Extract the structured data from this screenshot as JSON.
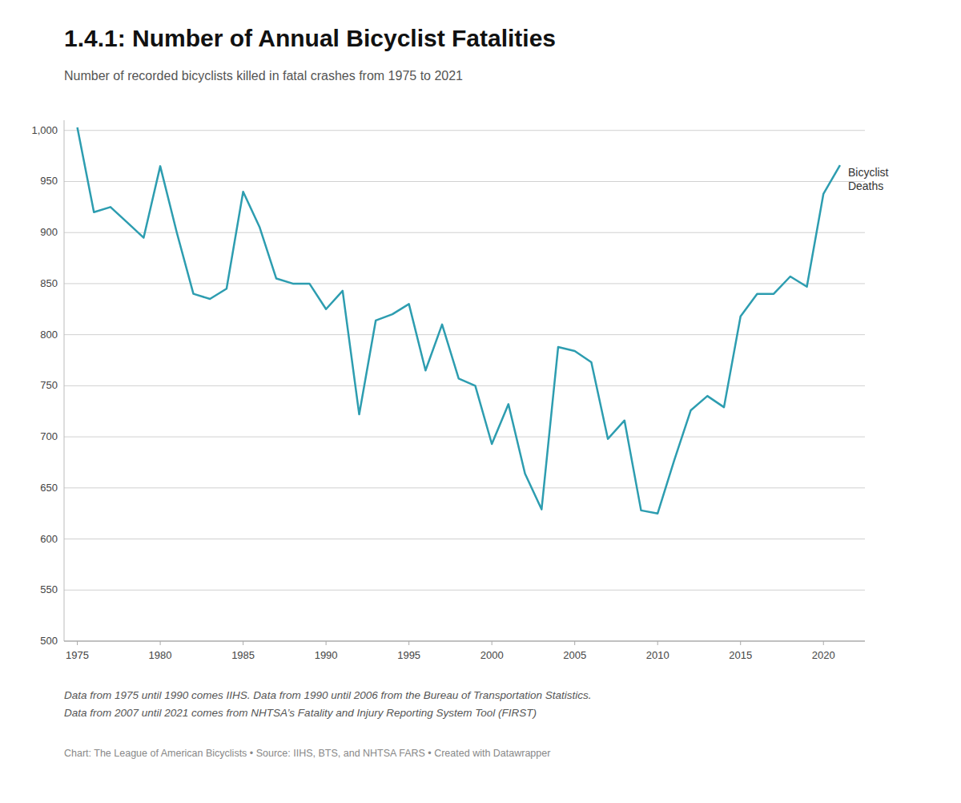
{
  "chart_data": {
    "type": "line",
    "title": "1.4.1: Number of Annual Bicyclist Fatalities",
    "subtitle": "Number of recorded bicyclists killed in fatal crashes from 1975 to 2021",
    "annotations": [
      "Data from 1975 until 1990 comes IIHS. Data from 1990 until 2006 from the Bureau of Transportation Statistics.",
      "Data from 2007 until 2021 comes from NHTSA’s Fatality and Injury Reporting System Tool (FIRST)",
      "Chart: The League of American Bicyclists • Source: IIHS, BTS, and NHTSA FARS • Created with Datawrapper"
    ],
    "x": [
      1975,
      1976,
      1977,
      1978,
      1979,
      1980,
      1981,
      1982,
      1983,
      1984,
      1985,
      1986,
      1987,
      1988,
      1989,
      1990,
      1991,
      1992,
      1993,
      1994,
      1995,
      1996,
      1997,
      1998,
      1999,
      2000,
      2001,
      2002,
      2003,
      2004,
      2005,
      2006,
      2007,
      2008,
      2009,
      2010,
      2011,
      2012,
      2013,
      2014,
      2015,
      2016,
      2017,
      2018,
      2019,
      2020,
      2021
    ],
    "series": [
      {
        "name": "Bicyclist\nDeaths",
        "color": "#2d9db0",
        "values": [
          1003,
          920,
          925,
          910,
          895,
          965,
          900,
          840,
          835,
          845,
          940,
          905,
          855,
          850,
          850,
          825,
          843,
          722,
          814,
          820,
          830,
          765,
          810,
          757,
          750,
          693,
          732,
          664,
          629,
          788,
          784,
          773,
          698,
          716,
          628,
          625,
          677,
          726,
          740,
          729,
          818,
          840,
          840,
          857,
          847,
          938,
          966
        ]
      }
    ],
    "xlim": [
      1974.2,
      2022.5
    ],
    "xticks": [
      1975,
      1980,
      1985,
      1990,
      1995,
      2000,
      2005,
      2010,
      2015,
      2020
    ],
    "ylim": [
      500,
      1010
    ],
    "yticks": [
      500,
      550,
      600,
      650,
      700,
      750,
      800,
      850,
      900,
      950,
      {
        "value": 1000,
        "label": "1,000"
      }
    ],
    "grid": true
  }
}
